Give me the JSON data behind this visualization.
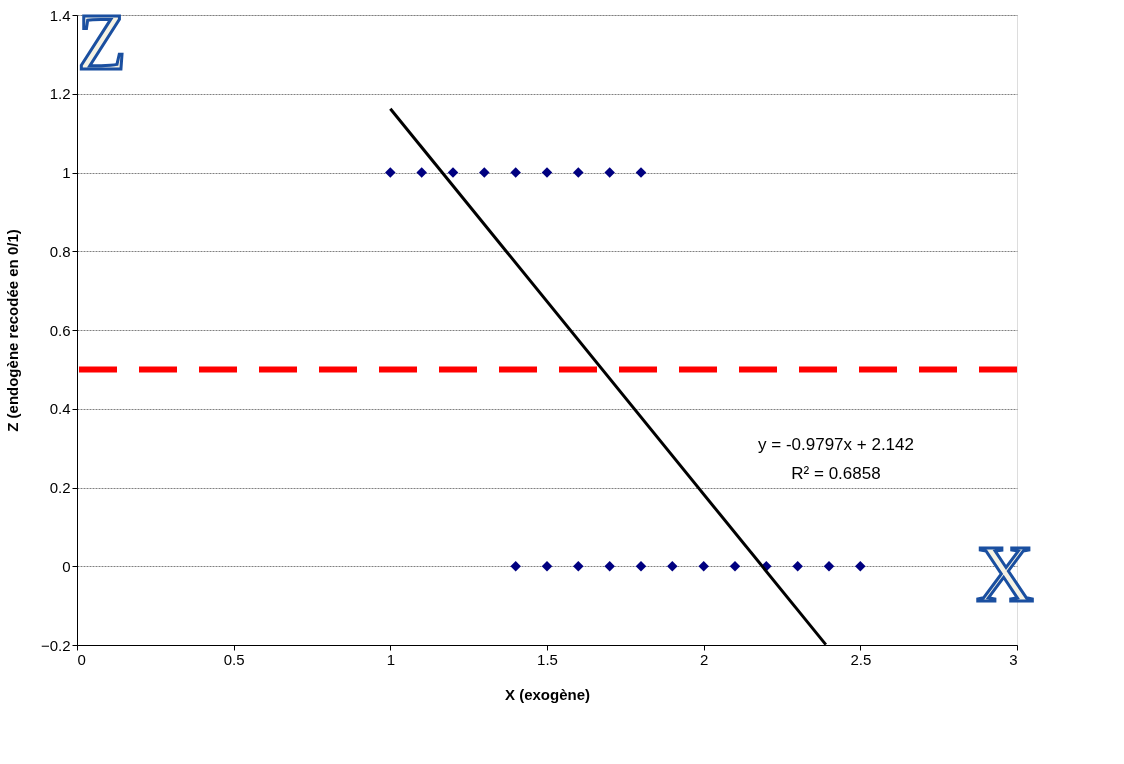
{
  "chart_data": {
    "type": "scatter",
    "xlabel": "X (exogène)",
    "ylabel": "Z (endogène recodée en 0/1)",
    "xlim": [
      0,
      3
    ],
    "xticks": [
      0,
      0.5,
      1,
      1.5,
      2,
      2.5,
      3
    ],
    "ylim": [
      -0.2,
      1.4
    ],
    "yticks": [
      -0.2,
      0,
      0.2,
      0.4,
      0.6,
      0.8,
      1,
      1.2,
      1.4
    ],
    "grid": "y",
    "marker": "diamond",
    "series": [
      {
        "color": "#000080",
        "x": [
          1.0,
          1.1,
          1.2,
          1.3,
          1.4,
          1.5,
          1.6,
          1.7,
          1.8,
          1.4,
          1.5,
          1.6,
          1.7,
          1.8,
          1.9,
          2.0,
          2.1,
          2.2,
          2.3,
          2.4,
          2.5
        ],
        "values": [
          1,
          1,
          1,
          1,
          1,
          1,
          1,
          1,
          1,
          0,
          0,
          0,
          0,
          0,
          0,
          0,
          0,
          0,
          0,
          0,
          0
        ]
      },
      {
        "type": "line",
        "color": "#000000",
        "line_style": "solid",
        "marker": "none",
        "x": [
          1.0,
          2.39
        ],
        "values": [
          1.162,
          -0.199
        ]
      }
    ],
    "ref_lines": [
      {
        "axis": "y",
        "value": 0.5,
        "color": "#ff0000",
        "line_style": "dashed"
      }
    ],
    "annotations": [
      "y = -0.9797x + 2.142",
      "R² = 0.6858",
      "Z",
      "X"
    ]
  }
}
